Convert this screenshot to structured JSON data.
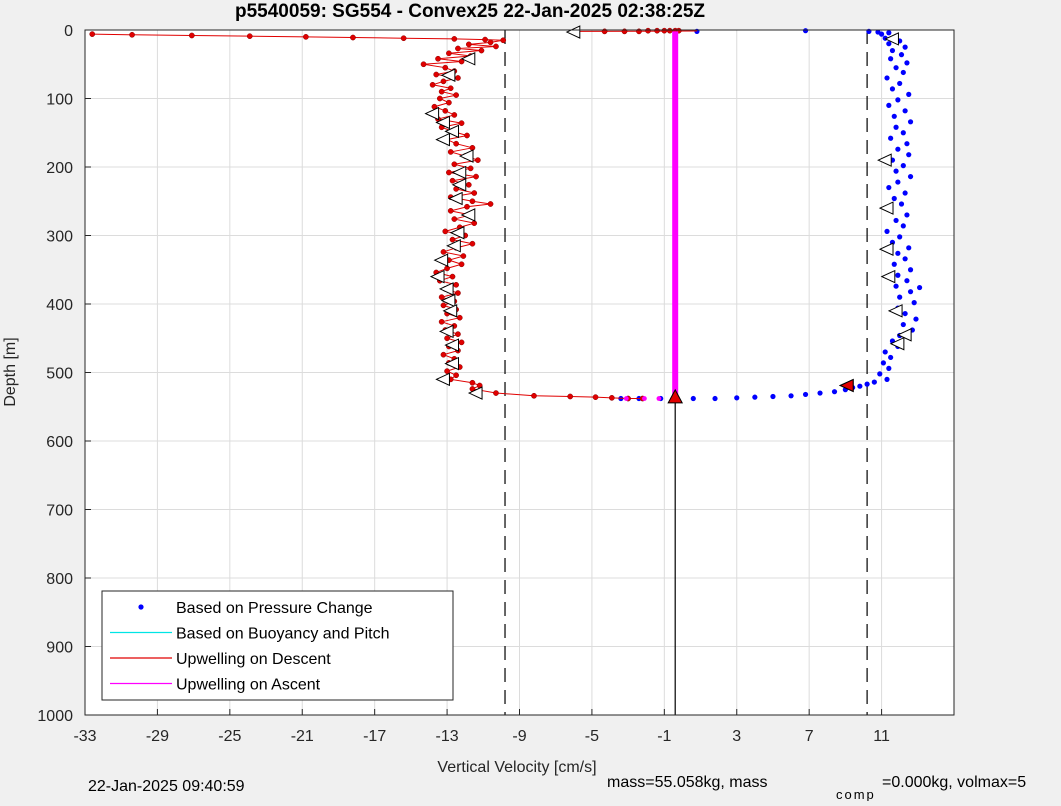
{
  "figure": {
    "title": "p5540059: SG554 - Convex25 22-Jan-2025 02:38:25Z",
    "footer_left": "22-Jan-2025 09:40:59",
    "footer_right_a": "mass=55.058kg, mass",
    "footer_right_sub": "comp",
    "footer_right_b": "=0.000kg, volmax=5"
  },
  "chart_data": {
    "type": "scatter",
    "title": "p5540059: SG554 - Convex25 22-Jan-2025 02:38:25Z",
    "xlabel": "Vertical Velocity [cm/s]",
    "ylabel": "Depth [m]",
    "xlim": [
      -33,
      15
    ],
    "ylim": [
      0,
      1000
    ],
    "y_reversed": true,
    "x_ticks": [
      -33,
      -29,
      -25,
      -21,
      -17,
      -13,
      -9,
      -5,
      -1,
      3,
      7,
      11
    ],
    "y_ticks": [
      0,
      100,
      200,
      300,
      400,
      500,
      600,
      700,
      800,
      900,
      1000
    ],
    "grid": true,
    "legend_position": "bottom-left",
    "legend": [
      {
        "label": "Based on Pressure Change",
        "color": "#0000ff",
        "marker": "dot"
      },
      {
        "label": "Based on Buoyancy and Pitch",
        "color": "#00e5e5",
        "marker": "line"
      },
      {
        "label": "Upwelling on Descent",
        "color": "#e00000",
        "marker": "line"
      },
      {
        "label": "Upwelling on Ascent",
        "color": "#ff00ff",
        "marker": "line"
      }
    ],
    "reference_lines": [
      {
        "x": -9.8,
        "style": "dashed",
        "color": "#000000"
      },
      {
        "x": 10.2,
        "style": "dashed",
        "color": "#000000"
      }
    ],
    "series": [
      {
        "name": "Based on Pressure Change",
        "color": "#0000ff",
        "points": [
          [
            10.3,
            2
          ],
          [
            10.8,
            3
          ],
          [
            11.4,
            4
          ],
          [
            11.0,
            6
          ],
          [
            11.8,
            9
          ],
          [
            11.2,
            12
          ],
          [
            12.0,
            16
          ],
          [
            11.4,
            20
          ],
          [
            12.3,
            25
          ],
          [
            11.6,
            30
          ],
          [
            12.1,
            36
          ],
          [
            11.5,
            42
          ],
          [
            12.4,
            48
          ],
          [
            11.8,
            55
          ],
          [
            12.2,
            62
          ],
          [
            11.3,
            70
          ],
          [
            12.0,
            78
          ],
          [
            11.6,
            86
          ],
          [
            12.5,
            94
          ],
          [
            11.9,
            102
          ],
          [
            11.4,
            110
          ],
          [
            12.3,
            118
          ],
          [
            11.7,
            126
          ],
          [
            12.6,
            134
          ],
          [
            11.8,
            142
          ],
          [
            12.2,
            150
          ],
          [
            11.5,
            158
          ],
          [
            12.4,
            166
          ],
          [
            11.9,
            174
          ],
          [
            12.5,
            182
          ],
          [
            11.6,
            190
          ],
          [
            12.2,
            198
          ],
          [
            11.8,
            206
          ],
          [
            12.6,
            214
          ],
          [
            11.9,
            222
          ],
          [
            11.4,
            230
          ],
          [
            12.3,
            238
          ],
          [
            11.7,
            246
          ],
          [
            12.1,
            254
          ],
          [
            11.5,
            262
          ],
          [
            12.4,
            270
          ],
          [
            11.8,
            278
          ],
          [
            12.2,
            286
          ],
          [
            11.3,
            294
          ],
          [
            12.0,
            302
          ],
          [
            11.6,
            310
          ],
          [
            12.5,
            318
          ],
          [
            11.9,
            326
          ],
          [
            12.3,
            334
          ],
          [
            11.7,
            342
          ],
          [
            12.6,
            350
          ],
          [
            11.9,
            358
          ],
          [
            12.4,
            366
          ],
          [
            11.8,
            374
          ],
          [
            13.1,
            376
          ],
          [
            12.6,
            382
          ],
          [
            12.0,
            390
          ],
          [
            12.8,
            398
          ],
          [
            11.9,
            406
          ],
          [
            12.3,
            414
          ],
          [
            12.9,
            422
          ],
          [
            12.2,
            430
          ],
          [
            12.7,
            438
          ],
          [
            12.0,
            446
          ],
          [
            11.6,
            454
          ],
          [
            11.9,
            462
          ],
          [
            11.2,
            470
          ],
          [
            11.5,
            478
          ],
          [
            11.1,
            486
          ],
          [
            11.4,
            494
          ],
          [
            10.9,
            502
          ],
          [
            11.3,
            510
          ],
          [
            10.6,
            514
          ],
          [
            10.2,
            517
          ],
          [
            9.8,
            520
          ],
          [
            9.4,
            522
          ],
          [
            9.0,
            525
          ],
          [
            8.4,
            528
          ],
          [
            7.6,
            530
          ],
          [
            6.8,
            532
          ],
          [
            6.0,
            534
          ],
          [
            5.0,
            535
          ],
          [
            4.0,
            536
          ],
          [
            3.0,
            537
          ],
          [
            1.8,
            538
          ],
          [
            0.6,
            538
          ],
          [
            -1.2,
            538
          ],
          [
            -2.4,
            538
          ],
          [
            -3.4,
            538
          ],
          [
            0.8,
            2
          ],
          [
            6.8,
            1
          ]
        ]
      },
      {
        "name": "Upwelling on Descent",
        "color": "#e00000",
        "points": [
          [
            -32.6,
            6
          ],
          [
            -30.4,
            7
          ],
          [
            -27.1,
            8
          ],
          [
            -23.9,
            9
          ],
          [
            -20.8,
            10
          ],
          [
            -18.2,
            11
          ],
          [
            -15.4,
            12
          ],
          [
            -12.6,
            13
          ],
          [
            -10.9,
            14
          ],
          [
            -9.9,
            15
          ],
          [
            -10.6,
            18
          ],
          [
            -11.8,
            21
          ],
          [
            -10.3,
            24
          ],
          [
            -12.4,
            27
          ],
          [
            -11.1,
            30
          ],
          [
            -12.9,
            34
          ],
          [
            -11.7,
            38
          ],
          [
            -13.5,
            42
          ],
          [
            -12.2,
            46
          ],
          [
            -14.3,
            50
          ],
          [
            -13.1,
            55
          ],
          [
            -12.6,
            60
          ],
          [
            -13.6,
            65
          ],
          [
            -12.4,
            70
          ],
          [
            -13.2,
            75
          ],
          [
            -13.8,
            80
          ],
          [
            -12.8,
            85
          ],
          [
            -13.3,
            90
          ],
          [
            -12.5,
            95
          ],
          [
            -13.4,
            100
          ],
          [
            -12.9,
            106
          ],
          [
            -13.7,
            112
          ],
          [
            -13.1,
            118
          ],
          [
            -12.6,
            124
          ],
          [
            -13.5,
            130
          ],
          [
            -12.2,
            136
          ],
          [
            -13.3,
            142
          ],
          [
            -12.7,
            148
          ],
          [
            -11.9,
            154
          ],
          [
            -13.0,
            160
          ],
          [
            -12.5,
            166
          ],
          [
            -11.6,
            172
          ],
          [
            -12.8,
            178
          ],
          [
            -12.0,
            184
          ],
          [
            -11.3,
            190
          ],
          [
            -12.6,
            196
          ],
          [
            -11.7,
            202
          ],
          [
            -12.9,
            208
          ],
          [
            -11.4,
            214
          ],
          [
            -12.7,
            220
          ],
          [
            -11.8,
            226
          ],
          [
            -12.5,
            232
          ],
          [
            -11.5,
            238
          ],
          [
            -12.8,
            244
          ],
          [
            -11.6,
            250
          ],
          [
            -10.6,
            254
          ],
          [
            -11.9,
            258
          ],
          [
            -12.8,
            264
          ],
          [
            -11.7,
            270
          ],
          [
            -12.6,
            276
          ],
          [
            -11.5,
            282
          ],
          [
            -12.3,
            288
          ],
          [
            -13.1,
            294
          ],
          [
            -12.0,
            300
          ],
          [
            -12.7,
            306
          ],
          [
            -11.6,
            312
          ],
          [
            -12.5,
            318
          ],
          [
            -13.2,
            324
          ],
          [
            -12.1,
            330
          ],
          [
            -12.9,
            336
          ],
          [
            -12.2,
            342
          ],
          [
            -13.0,
            348
          ],
          [
            -13.6,
            354
          ],
          [
            -12.7,
            360
          ],
          [
            -13.4,
            366
          ],
          [
            -12.5,
            372
          ],
          [
            -13.1,
            378
          ],
          [
            -12.4,
            384
          ],
          [
            -13.3,
            390
          ],
          [
            -12.6,
            396
          ],
          [
            -13.2,
            402
          ],
          [
            -12.5,
            408
          ],
          [
            -13.0,
            414
          ],
          [
            -12.3,
            420
          ],
          [
            -13.3,
            426
          ],
          [
            -12.6,
            432
          ],
          [
            -13.1,
            438
          ],
          [
            -12.4,
            444
          ],
          [
            -13.0,
            450
          ],
          [
            -12.2,
            456
          ],
          [
            -12.9,
            462
          ],
          [
            -12.4,
            468
          ],
          [
            -13.2,
            474
          ],
          [
            -12.6,
            480
          ],
          [
            -12.9,
            486
          ],
          [
            -12.3,
            492
          ],
          [
            -13.0,
            498
          ],
          [
            -12.5,
            504
          ],
          [
            -12.8,
            510
          ],
          [
            -11.6,
            515
          ],
          [
            -11.2,
            519
          ],
          [
            -11.6,
            524
          ],
          [
            -10.3,
            530
          ],
          [
            -8.2,
            534
          ],
          [
            -6.2,
            535
          ],
          [
            -4.8,
            536
          ],
          [
            -3.9,
            537
          ],
          [
            -3.0,
            538
          ],
          [
            -2.2,
            538
          ],
          [
            -4.3,
            2
          ],
          [
            -3.2,
            2
          ],
          [
            -2.4,
            2
          ],
          [
            -1.9,
            1
          ],
          [
            -1.4,
            1
          ],
          [
            -1.0,
            1
          ],
          [
            -0.7,
            1
          ],
          [
            -0.4,
            1
          ],
          [
            -0.2,
            1
          ]
        ]
      },
      {
        "name": "Upwelling on Ascent",
        "color": "#ff00ff",
        "points": [
          [
            -0.4,
            2
          ],
          [
            -0.4,
            100
          ],
          [
            -0.4,
            200
          ],
          [
            -0.4,
            300
          ],
          [
            -0.4,
            400
          ],
          [
            -0.4,
            500
          ],
          [
            -0.4,
            536
          ],
          [
            -1.3,
            538
          ],
          [
            -2.1,
            538
          ],
          [
            -3.1,
            538
          ]
        ]
      }
    ],
    "markers": [
      {
        "kind": "triangle-left",
        "points": [
          [
            -6.0,
            3
          ],
          [
            11.6,
            13
          ],
          [
            -11.8,
            42
          ],
          [
            -12.9,
            66
          ],
          [
            -13.8,
            122
          ],
          [
            -13.2,
            135
          ],
          [
            -12.7,
            148
          ],
          [
            -13.2,
            160
          ],
          [
            -11.9,
            184
          ],
          [
            -12.3,
            208
          ],
          [
            -12.3,
            226
          ],
          [
            -12.5,
            246
          ],
          [
            -11.8,
            270
          ],
          [
            -12.4,
            296
          ],
          [
            -12.6,
            315
          ],
          [
            -13.3,
            336
          ],
          [
            -13.5,
            360
          ],
          [
            -13.0,
            378
          ],
          [
            -12.9,
            395
          ],
          [
            -12.8,
            410
          ],
          [
            -13.0,
            440
          ],
          [
            -12.7,
            460
          ],
          [
            -12.7,
            487
          ],
          [
            -13.2,
            510
          ],
          [
            -11.4,
            530
          ],
          [
            11.2,
            190
          ],
          [
            11.3,
            260
          ],
          [
            11.3,
            320
          ],
          [
            11.4,
            360
          ],
          [
            11.8,
            410
          ],
          [
            12.3,
            445
          ],
          [
            11.9,
            458
          ],
          [
            9.1,
            519
          ]
        ]
      },
      {
        "kind": "triangle-up",
        "color": "#e00000",
        "points": [
          [
            -0.4,
            537
          ]
        ]
      },
      {
        "kind": "triangle-left-red",
        "color": "#e00000",
        "points": [
          [
            9.1,
            519
          ]
        ]
      }
    ],
    "vertical_stem": {
      "x": -0.4,
      "from": 537,
      "to": 1000
    }
  }
}
